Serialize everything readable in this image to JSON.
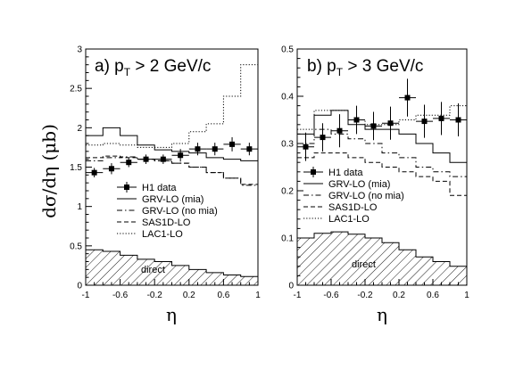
{
  "figure": {
    "ylabel": "dσ/dη (μb)",
    "xlabel": "η"
  },
  "chart_data": [
    {
      "type": "line",
      "title_prefix": "a) p",
      "title_sub": "T",
      "title_suffix": " > 2  GeV/c",
      "xlim": [
        -1,
        1
      ],
      "ylim": [
        0,
        3
      ],
      "x_ticks": [
        -1,
        -0.6,
        -0.2,
        0.2,
        0.6,
        1
      ],
      "x_tick_labels": [
        "-1",
        "-0.6",
        "-0.2",
        "0.2",
        "0.6",
        "1"
      ],
      "y_ticks": [
        0,
        0.5,
        1,
        1.5,
        2,
        2.5,
        3
      ],
      "y_tick_labels": [
        "0",
        "0.5",
        "1",
        "1.5",
        "2",
        "2.5",
        "3"
      ],
      "bin_edges": [
        -1,
        -0.8,
        -0.6,
        -0.4,
        -0.2,
        0,
        0.2,
        0.4,
        0.6,
        0.8,
        1
      ],
      "h1_data": {
        "name": "H1 data",
        "x": [
          -0.9,
          -0.7,
          -0.5,
          -0.3,
          -0.1,
          0.1,
          0.3,
          0.5,
          0.7,
          0.9
        ],
        "y": [
          1.43,
          1.48,
          1.56,
          1.6,
          1.6,
          1.65,
          1.73,
          1.73,
          1.79,
          1.73
        ],
        "err": [
          0.06,
          0.07,
          0.06,
          0.06,
          0.06,
          0.08,
          0.08,
          0.08,
          0.09,
          0.08
        ]
      },
      "series": [
        {
          "name": "GRV-LO (mia)",
          "style": "solid",
          "values": [
            1.9,
            2.0,
            1.9,
            1.78,
            1.72,
            1.7,
            1.68,
            1.62,
            1.6,
            1.58
          ]
        },
        {
          "name": "GRV-LO (no mia)",
          "style": "dashdot",
          "values": [
            1.58,
            1.62,
            1.63,
            1.6,
            1.58,
            1.55,
            1.5,
            1.43,
            1.36,
            1.27
          ]
        },
        {
          "name": "SAS1D-LO",
          "style": "dashed",
          "values": [
            1.62,
            1.64,
            1.62,
            1.6,
            1.58,
            1.55,
            1.5,
            1.43,
            1.36,
            1.28
          ]
        },
        {
          "name": "LAC1-LO",
          "style": "dotted",
          "values": [
            1.78,
            1.8,
            1.78,
            1.75,
            1.75,
            1.8,
            1.95,
            2.05,
            2.4,
            2.8
          ]
        }
      ],
      "direct": {
        "label": "direct",
        "values": [
          0.45,
          0.43,
          0.38,
          0.33,
          0.3,
          0.25,
          0.2,
          0.16,
          0.13,
          0.11
        ]
      }
    },
    {
      "type": "line",
      "title_prefix": "b) p",
      "title_sub": "T",
      "title_suffix": " > 3  GeV/c",
      "xlim": [
        -1,
        1
      ],
      "ylim": [
        0,
        0.5
      ],
      "x_ticks": [
        -1,
        -0.6,
        -0.2,
        0.2,
        0.6,
        1
      ],
      "x_tick_labels": [
        "-1",
        "-0.6",
        "-0.2",
        "0.2",
        "0.6",
        "1"
      ],
      "y_ticks": [
        0,
        0.1,
        0.2,
        0.3,
        0.4,
        0.5
      ],
      "y_tick_labels": [
        "0",
        "0.1",
        "0.2",
        "0.3",
        "0.4",
        "0.5"
      ],
      "bin_edges": [
        -1,
        -0.8,
        -0.6,
        -0.4,
        -0.2,
        0,
        0.2,
        0.4,
        0.6,
        0.8,
        1
      ],
      "h1_data": {
        "name": "H1 data",
        "x": [
          -0.9,
          -0.7,
          -0.5,
          -0.3,
          -0.1,
          0.1,
          0.3,
          0.5,
          0.7,
          0.9
        ],
        "y": [
          0.293,
          0.313,
          0.327,
          0.35,
          0.337,
          0.343,
          0.397,
          0.347,
          0.353,
          0.35
        ],
        "err": [
          0.03,
          0.03,
          0.035,
          0.03,
          0.03,
          0.035,
          0.04,
          0.035,
          0.035,
          0.035
        ]
      },
      "series": [
        {
          "name": "GRV-LO (mia)",
          "style": "solid",
          "values": [
            0.32,
            0.36,
            0.37,
            0.34,
            0.33,
            0.33,
            0.32,
            0.3,
            0.28,
            0.26
          ]
        },
        {
          "name": "GRV-LO (no mia)",
          "style": "dashdot",
          "values": [
            0.3,
            0.33,
            0.32,
            0.31,
            0.3,
            0.28,
            0.27,
            0.25,
            0.24,
            0.23
          ]
        },
        {
          "name": "SAS1D-LO",
          "style": "dashed",
          "values": [
            0.27,
            0.28,
            0.28,
            0.27,
            0.26,
            0.25,
            0.24,
            0.23,
            0.22,
            0.19
          ]
        },
        {
          "name": "LAC1-LO",
          "style": "dotted",
          "values": [
            0.33,
            0.37,
            0.37,
            0.35,
            0.34,
            0.34,
            0.35,
            0.36,
            0.36,
            0.38
          ]
        }
      ],
      "direct": {
        "label": "direct",
        "values": [
          0.1,
          0.11,
          0.113,
          0.108,
          0.1,
          0.09,
          0.075,
          0.06,
          0.05,
          0.04
        ]
      }
    }
  ]
}
